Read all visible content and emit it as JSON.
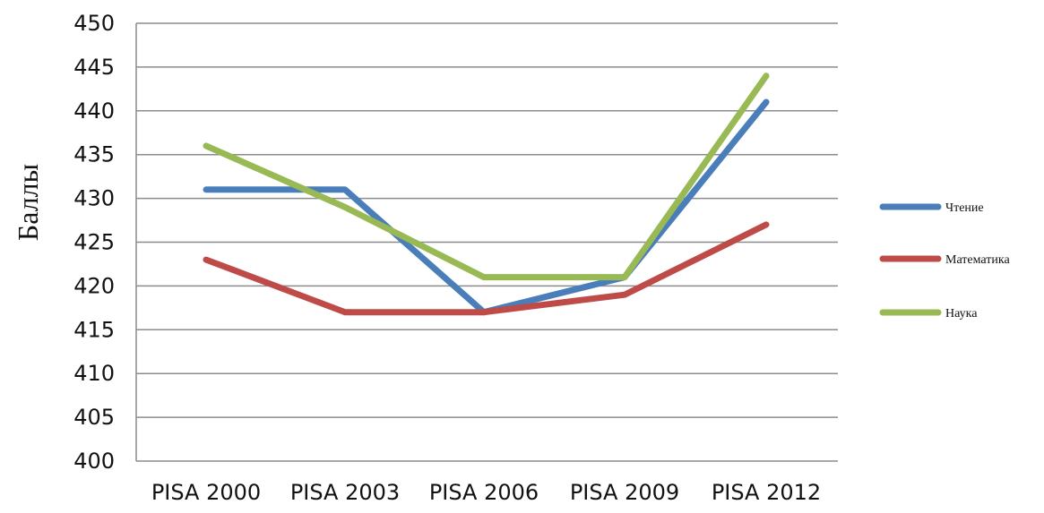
{
  "chart_data": {
    "type": "line",
    "title": "",
    "xlabel": "",
    "ylabel": "Баллы",
    "categories": [
      "PISA 2000",
      "PISA 2003",
      "PISA 2006",
      "PISA 2009",
      "PISA 2012"
    ],
    "ylim": [
      400,
      450
    ],
    "yticks": [
      400,
      405,
      410,
      415,
      420,
      425,
      430,
      435,
      440,
      445,
      450
    ],
    "grid": true,
    "legend_position": "right",
    "series": [
      {
        "name": "Чтение",
        "color": "#4a7ebb",
        "values": [
          431,
          431,
          417,
          421,
          441
        ]
      },
      {
        "name": "Математика",
        "color": "#be4b48",
        "values": [
          423,
          417,
          417,
          419,
          427
        ]
      },
      {
        "name": "Наука",
        "color": "#98b954",
        "values": [
          436,
          429,
          421,
          421,
          444
        ]
      }
    ]
  }
}
